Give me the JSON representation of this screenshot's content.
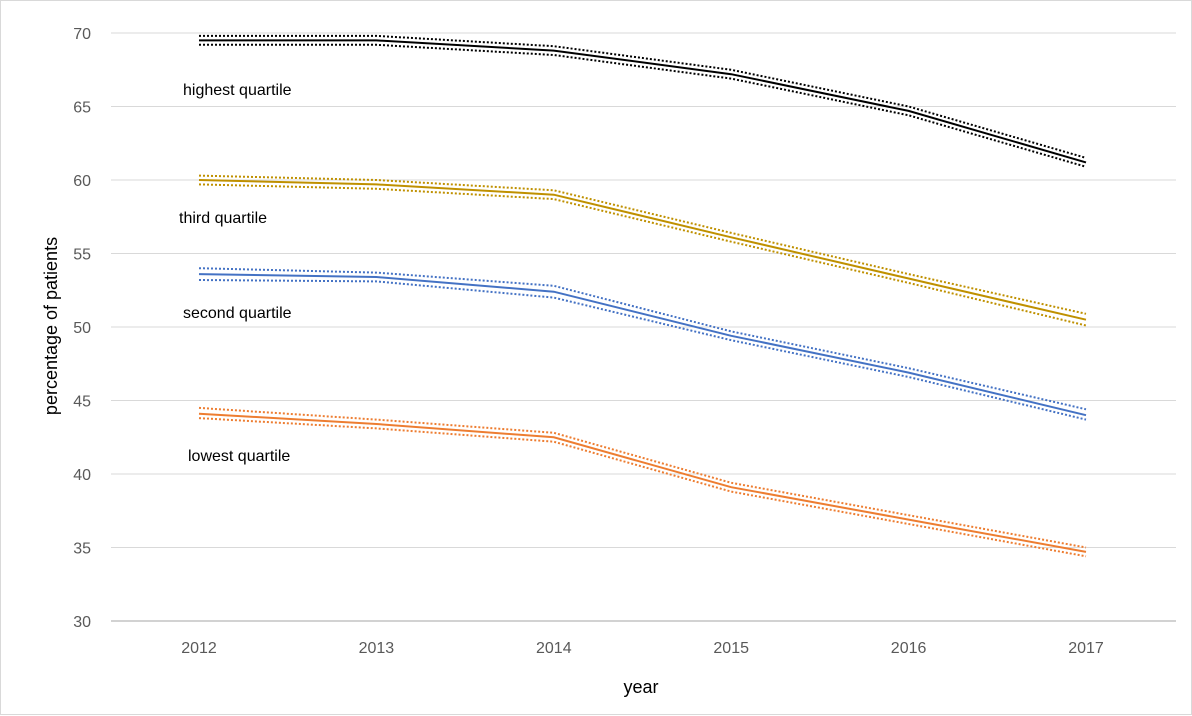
{
  "chart_data": {
    "type": "line",
    "title": "",
    "xlabel": "year",
    "ylabel": "percentage of patients",
    "x": [
      "2012",
      "2013",
      "2014",
      "2015",
      "2016",
      "2017"
    ],
    "ylim": [
      30,
      70
    ],
    "yticks": [
      30,
      35,
      40,
      45,
      50,
      55,
      60,
      65,
      70
    ],
    "grid": "horizontal",
    "legend": "none",
    "series": [
      {
        "name": "highest quartile",
        "color": "#000000",
        "values": [
          69.5,
          69.5,
          68.8,
          67.2,
          64.7,
          61.2
        ],
        "upper": [
          69.8,
          69.8,
          69.1,
          67.5,
          65.0,
          61.5
        ],
        "lower": [
          69.2,
          69.2,
          68.5,
          66.9,
          64.4,
          60.9
        ]
      },
      {
        "name": "third quartile",
        "color": "#bf9000",
        "values": [
          60.0,
          59.7,
          59.0,
          56.1,
          53.3,
          50.5
        ],
        "upper": [
          60.3,
          60.0,
          59.3,
          56.4,
          53.6,
          50.9
        ],
        "lower": [
          59.7,
          59.4,
          58.7,
          55.8,
          53.0,
          50.1
        ]
      },
      {
        "name": "second quartile",
        "color": "#4472c4",
        "values": [
          53.6,
          53.4,
          52.4,
          49.4,
          46.9,
          44.0
        ],
        "upper": [
          54.0,
          53.7,
          52.8,
          49.7,
          47.2,
          44.4
        ],
        "lower": [
          53.2,
          53.1,
          52.0,
          49.1,
          46.6,
          43.7
        ]
      },
      {
        "name": "lowest quartile",
        "color": "#ed7d31",
        "values": [
          44.1,
          43.4,
          42.5,
          39.1,
          36.9,
          34.7
        ],
        "upper": [
          44.5,
          43.7,
          42.8,
          39.4,
          37.2,
          35.0
        ],
        "lower": [
          43.8,
          43.1,
          42.2,
          38.8,
          36.6,
          34.4
        ]
      }
    ]
  }
}
